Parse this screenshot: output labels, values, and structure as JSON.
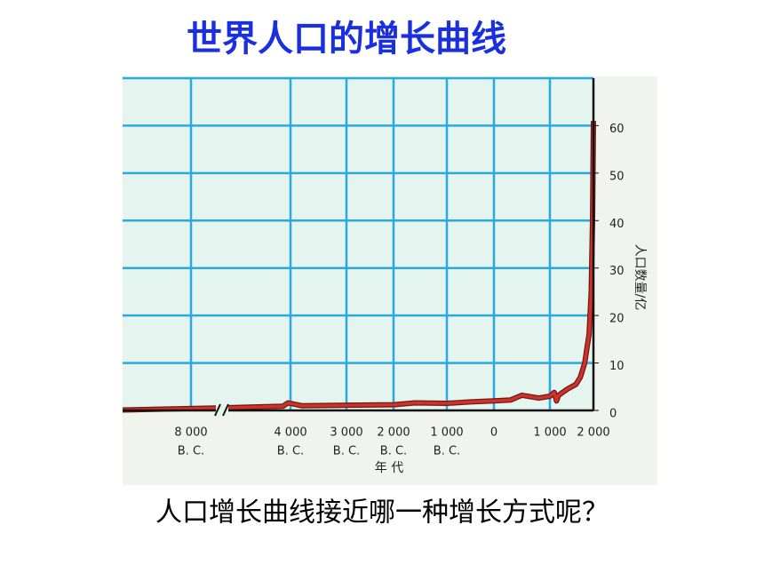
{
  "chart_data": {
    "type": "line",
    "title": "世界人口的增长曲线",
    "question": "人口增长曲线接近哪一种增长方式呢？",
    "x_label": "年 代",
    "y_label": "人口数量/亿",
    "color": "#d2302a",
    "grid": true,
    "xlim": [
      -10000,
      2000
    ],
    "xticks": [
      {
        "value": -8000,
        "label": "8 000",
        "era": "B. C."
      },
      {
        "value": -4000,
        "label": "4 000",
        "era": "B. C."
      },
      {
        "value": -3000,
        "label": "3 000",
        "era": "B. C."
      },
      {
        "value": -2000,
        "label": "2 000",
        "era": "B. C."
      },
      {
        "value": -1000,
        "label": "1 000",
        "era": "B. C."
      },
      0,
      {
        "value": 1000,
        "label": "1 000"
      },
      {
        "value": 2000,
        "label": "2 000"
      }
    ],
    "ylim": [
      0,
      70
    ],
    "yticks": [
      0,
      10,
      20,
      30,
      40,
      50,
      60
    ],
    "x": [
      -10000,
      -7000,
      -4300,
      -4100,
      -3800,
      -3000,
      -2000,
      -1600,
      -1000,
      -500,
      0,
      300,
      500,
      800,
      1000,
      1100,
      1150,
      1200,
      1400,
      1600,
      1700,
      1800,
      1850,
      1900,
      1950,
      1980,
      2000
    ],
    "values": [
      0.1,
      0.5,
      0.9,
      1.6,
      1.0,
      1.1,
      1.2,
      1.6,
      1.5,
      1.8,
      2.0,
      2.2,
      3.2,
      2.6,
      3.0,
      3.8,
      2.0,
      3.2,
      4.5,
      5.5,
      7,
      10,
      13,
      16,
      25,
      40,
      61
    ]
  }
}
